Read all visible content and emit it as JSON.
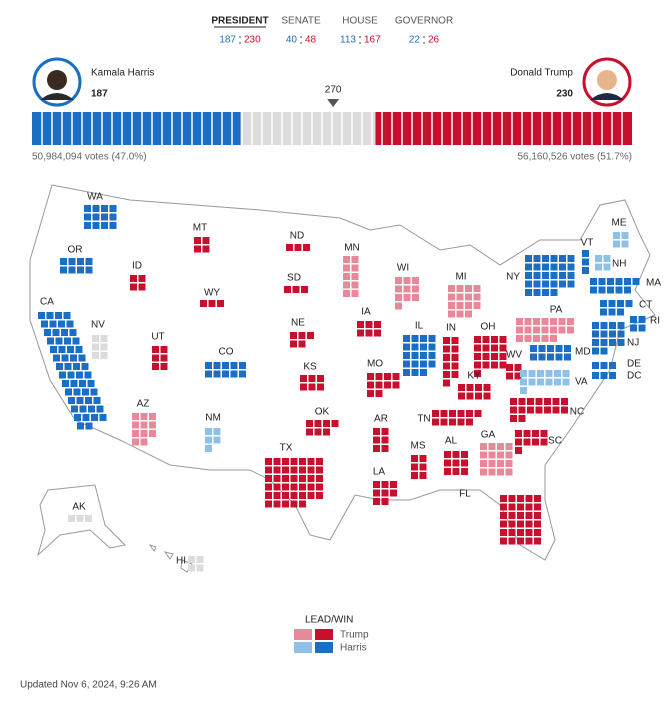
{
  "tabs": [
    {
      "label": "PRESIDENT",
      "dem": 187,
      "rep": 230
    },
    {
      "label": "SENATE",
      "dem": 40,
      "rep": 48
    },
    {
      "label": "HOUSE",
      "dem": 113,
      "rep": 167
    },
    {
      "label": "GOVERNOR",
      "dem": 22,
      "rep": 26
    }
  ],
  "candidates": [
    {
      "name": "Kamala Harris",
      "ev": 187,
      "votes": "50,984,094 votes (47.0%)",
      "color": "#1a6fc4"
    },
    {
      "name": "Donald Trump",
      "ev": 230,
      "votes": "56,160,526 votes (51.7%)",
      "color": "#c8102e"
    }
  ],
  "threshold": 270,
  "status_colors": {
    "trump-win": "#c8102e",
    "trump-lead": "#e8899a",
    "harris-win": "#1a6fc4",
    "harris-lead": "#8ec0e8",
    "pending": "#dcdcdc"
  },
  "states": [
    {
      "label": "WA",
      "ev": 12,
      "status": "harris-win"
    },
    {
      "label": "OR",
      "ev": 8,
      "status": "harris-win"
    },
    {
      "label": "CA",
      "ev": 54,
      "status": "harris-win"
    },
    {
      "label": "NV",
      "ev": 6,
      "status": "pending"
    },
    {
      "label": "ID",
      "ev": 4,
      "status": "trump-win"
    },
    {
      "label": "MT",
      "ev": 4,
      "status": "trump-win"
    },
    {
      "label": "WY",
      "ev": 3,
      "status": "trump-win"
    },
    {
      "label": "UT",
      "ev": 6,
      "status": "trump-win"
    },
    {
      "label": "AZ",
      "ev": 11,
      "status": "trump-lead"
    },
    {
      "label": "CO",
      "ev": 10,
      "status": "harris-win"
    },
    {
      "label": "NM",
      "ev": 5,
      "status": "harris-lead"
    },
    {
      "label": "ND",
      "ev": 3,
      "status": "trump-win"
    },
    {
      "label": "SD",
      "ev": 3,
      "status": "trump-win"
    },
    {
      "label": "NE",
      "ev": 5,
      "status": "trump-win"
    },
    {
      "label": "KS",
      "ev": 6,
      "status": "trump-win"
    },
    {
      "label": "OK",
      "ev": 7,
      "status": "trump-win"
    },
    {
      "label": "TX",
      "ev": 40,
      "status": "trump-win"
    },
    {
      "label": "MN",
      "ev": 10,
      "status": "trump-lead"
    },
    {
      "label": "IA",
      "ev": 6,
      "status": "trump-win"
    },
    {
      "label": "MO",
      "ev": 10,
      "status": "trump-win"
    },
    {
      "label": "AR",
      "ev": 6,
      "status": "trump-win"
    },
    {
      "label": "LA",
      "ev": 8,
      "status": "trump-win"
    },
    {
      "label": "WI",
      "ev": 10,
      "status": "trump-lead"
    },
    {
      "label": "MI",
      "ev": 15,
      "status": "trump-lead"
    },
    {
      "label": "IL",
      "ev": 19,
      "status": "harris-win"
    },
    {
      "label": "IN",
      "ev": 11,
      "status": "trump-win"
    },
    {
      "label": "OH",
      "ev": 17,
      "status": "trump-win"
    },
    {
      "label": "KY",
      "ev": 8,
      "status": "trump-win"
    },
    {
      "label": "TN",
      "ev": 11,
      "status": "trump-win"
    },
    {
      "label": "MS",
      "ev": 6,
      "status": "trump-win"
    },
    {
      "label": "AL",
      "ev": 9,
      "status": "trump-win"
    },
    {
      "label": "GA",
      "ev": 16,
      "status": "trump-lead"
    },
    {
      "label": "FL",
      "ev": 30,
      "status": "trump-win"
    },
    {
      "label": "SC",
      "ev": 9,
      "status": "trump-win"
    },
    {
      "label": "NC",
      "ev": 16,
      "status": "trump-win"
    },
    {
      "label": "WV",
      "ev": 4,
      "status": "trump-win"
    },
    {
      "label": "VA",
      "ev": 13,
      "status": "harris-lead"
    },
    {
      "label": "PA",
      "ev": 19,
      "status": "trump-lead"
    },
    {
      "label": "NY",
      "ev": 28,
      "status": "harris-win"
    },
    {
      "label": "VT",
      "ev": 3,
      "status": "harris-win"
    },
    {
      "label": "NH",
      "ev": 4,
      "status": "harris-lead"
    },
    {
      "label": "ME",
      "ev": 4,
      "status": "harris-lead"
    },
    {
      "label": "MA",
      "ev": 11,
      "status": "harris-win"
    },
    {
      "label": "CT",
      "ev": 7,
      "status": "harris-win"
    },
    {
      "label": "RI",
      "ev": 4,
      "status": "harris-win"
    },
    {
      "label": "NJ",
      "ev": 14,
      "status": "harris-win"
    },
    {
      "label": "DE",
      "ev": 3,
      "status": "harris-win"
    },
    {
      "label": "MD",
      "ev": 10,
      "status": "harris-win"
    },
    {
      "label": "DC",
      "ev": 3,
      "status": "harris-win"
    },
    {
      "label": "AK",
      "ev": 3,
      "status": "pending"
    },
    {
      "label": "HI",
      "ev": 4,
      "status": "pending"
    }
  ],
  "legend": {
    "title": "LEAD/WIN",
    "items": [
      "Trump",
      "Harris"
    ]
  },
  "updated": "Updated Nov 6, 2024, 9:26 AM"
}
